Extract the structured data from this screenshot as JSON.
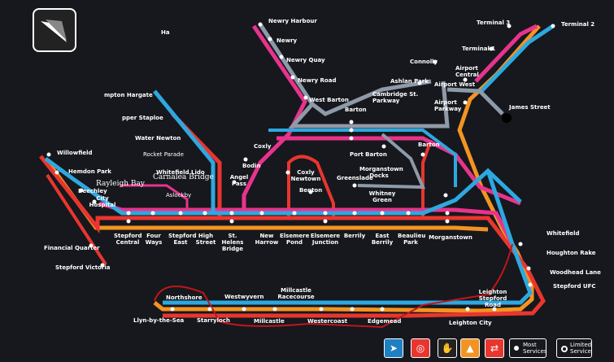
{
  "colors": {
    "background": "#16181d",
    "red": "#e8362f",
    "pink": "#e8338c",
    "blue": "#2ea8e0",
    "grey": "#8f9aa8",
    "orange": "#f39422"
  },
  "labels": {
    "newry_harbour": "Newry Harbour",
    "newry": "Newry",
    "newry_quay": "Newry Quay",
    "newry_road": "Newry Road",
    "west_barton": "West Barton",
    "barton": "Barton",
    "connolly": "Connolly",
    "ashlan_park": "Ashlan Park",
    "cambridge_st_parkway": "Cambridge St. Parkway",
    "airport_west": "Airport West",
    "airport_central": "Airport Central",
    "airport_parkway": "Airport Parkway",
    "james_street": "James Street",
    "terminal_3": "Terminal 3",
    "terminal_2": "Terminal 2",
    "terminal_1": "Terminal 1",
    "ha": "Ha",
    "hampton_hargate": "mpton Hargate",
    "upper_staploe": "pper Staploe",
    "water_newton": "Water Newton",
    "rocket_parade": "Rocket Parade",
    "willowfield": "Willowfield",
    "hemdon_park": "Hemdon Park",
    "beechley": "Beechley",
    "city_hospital": "City Hospital",
    "whitefield_lido": "Whitefield Lido",
    "carnalea_bridge": "Carnalea Bridge",
    "rayleigh_bay": "Rayleigh Bay",
    "aslockby": "Aslockby",
    "angel_pass": "Angel Pass",
    "coxly": "Coxly",
    "bodin": "Bodin",
    "coxly_newtown": "Coxly Newtown",
    "benton": "Benton",
    "port_barton": "Port Barton",
    "morganstown_docks": "Morganstown Docks",
    "greenslade": "Greenslade",
    "whitney_green": "Whitney Green",
    "barton_east": "Barton",
    "stepford_central": "Stepford Central",
    "four_ways": "Four Ways",
    "stepford_east": "Stepford East",
    "high_street": "High Street",
    "st_helens_bridge": "St. Helens Bridge",
    "new_harrow": "New Harrow",
    "elsemere_pond": "Elsemere Pond",
    "elsemere_junction": "Elsemere Junction",
    "berrily": "Berrily",
    "east_berrily": "East Berrily",
    "beaulieu_park": "Beaulieu Park",
    "morganstown": "Morganstown",
    "financial_quarter": "Financial Quarter",
    "stepford_victoria": "Stepford Victoria",
    "whitefield": "Whitefield",
    "houghton_rake": "Houghton Rake",
    "woodhead_lane": "Woodhead Lane",
    "stepford_ufc": "Stepford UFC",
    "northshore": "Northshore",
    "westwyvern": "Westwyvern",
    "millcastle_racecourse": "Millcastle Racecourse",
    "leighton_stepford_road": "Leighton Stepford Road",
    "llyn_by_the_sea": "Llyn-by-the-Sea",
    "starryloch": "Starryloch",
    "millcastle": "Millcastle",
    "westercoast": "Westercoast",
    "edgemead": "Edgemead",
    "leighton_city": "Leighton City"
  },
  "legend": {
    "most_services": "Most Services",
    "limited_service": "Limited Service",
    "operator_icons": [
      "arrow-icon",
      "roundel-icon",
      "hand-icon",
      "mountain-icon",
      "rail-icon"
    ]
  }
}
